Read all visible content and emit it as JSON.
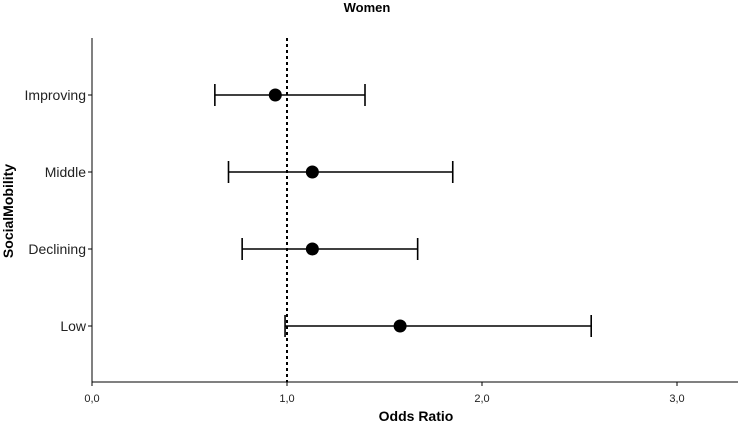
{
  "chart_data": {
    "type": "scatter",
    "subtype": "forest-plot",
    "title": "Women",
    "xlabel": "Odds Ratio",
    "ylabel": "SocialMobility",
    "xlim": [
      0,
      3.3
    ],
    "x_ticks": [
      0,
      1,
      2,
      3
    ],
    "x_tick_labels": [
      "0,0",
      "1,0",
      "2,0",
      "3,0"
    ],
    "reference_line": {
      "x": 1.0,
      "style": "dotted"
    },
    "categories": [
      "Improving",
      "Middle",
      "Declining",
      "Low"
    ],
    "estimates": [
      0.94,
      1.13,
      1.13,
      1.58
    ],
    "ci_lower": [
      0.63,
      0.7,
      0.77,
      0.99
    ],
    "ci_upper": [
      1.4,
      1.85,
      1.67,
      2.56
    ],
    "grid": false,
    "colors": {
      "marker": "#000000",
      "line": "#000000",
      "axis": "#000000",
      "background": "#ffffff"
    }
  }
}
